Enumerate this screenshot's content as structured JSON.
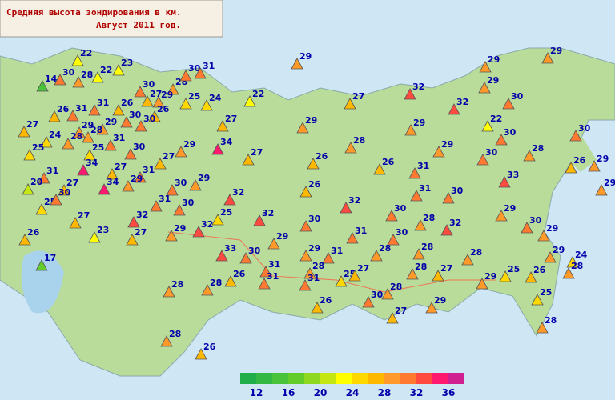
{
  "title_lines": [
    "Средняя высота зондирования в км.",
    "Август 2011 год."
  ],
  "stations": [
    22,
    22,
    23,
    14,
    30,
    28,
    30,
    28,
    30,
    31,
    29,
    25,
    24,
    22,
    27,
    29,
    32,
    32,
    29,
    29,
    30,
    29,
    26,
    31,
    31,
    26,
    27,
    26,
    30,
    30,
    29,
    29,
    27,
    24,
    28,
    28,
    27,
    29,
    29,
    22,
    30,
    30,
    25,
    25,
    31,
    30,
    29,
    34,
    27,
    28,
    29,
    30,
    28,
    34,
    31,
    27,
    31,
    27,
    26,
    26,
    31,
    33,
    26,
    29,
    20,
    27,
    34,
    29,
    30,
    29,
    32,
    26,
    32,
    31,
    30,
    29,
    25,
    30,
    31,
    30,
    25,
    32,
    32,
    27,
    30,
    30,
    28,
    32,
    29,
    30,
    29,
    26,
    23,
    27,
    29,
    32,
    29,
    31,
    30,
    33,
    30,
    29,
    31,
    28,
    28,
    28,
    29,
    24,
    17,
    31,
    28,
    25,
    27,
    28,
    27,
    29,
    25,
    26,
    28,
    28,
    28,
    26,
    31,
    31,
    30,
    28,
    25,
    26,
    27,
    29,
    28,
    28,
    26
  ],
  "legend": {
    "lim": [
      10,
      38
    ],
    "ticks": [
      12,
      16,
      20,
      24,
      28,
      32,
      36
    ],
    "colors": [
      "#1fae4a",
      "#34b844",
      "#49c43a",
      "#63cc2a",
      "#8fd820",
      "#c4e612",
      "#ffff00",
      "#ffd800",
      "#ffb800",
      "#ff9a2a",
      "#ff7a30",
      "#ff4a40",
      "#ff1a70",
      "#d02090"
    ]
  }
}
